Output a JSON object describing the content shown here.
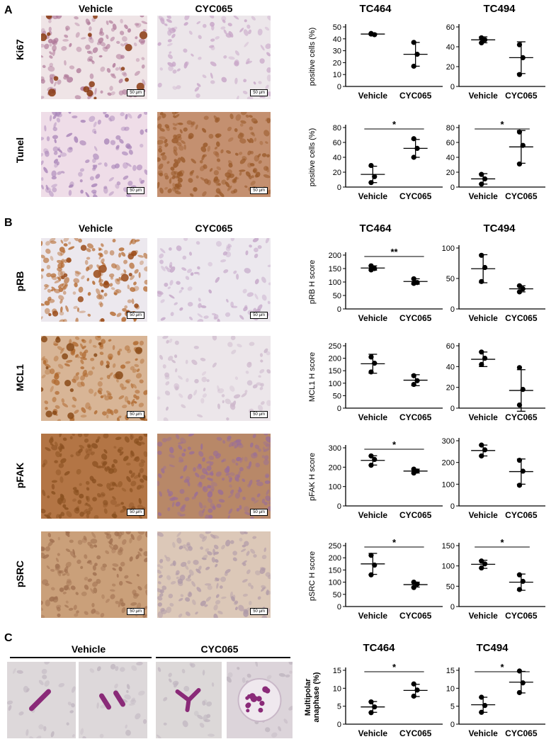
{
  "panels": {
    "A": "A",
    "B": "B",
    "C": "C"
  },
  "headers": {
    "A": {
      "col1": "Vehicle",
      "col2": "CYC065",
      "chart1": "TC464",
      "chart2": "TC494"
    },
    "B": {
      "col1": "Vehicle",
      "col2": "CYC065",
      "chart1": "TC464",
      "chart2": "TC494"
    },
    "C": {
      "col1": "Vehicle",
      "col2": "CYC065",
      "chart1": "TC464",
      "chart2": "TC494"
    }
  },
  "rows": {
    "ki67": "Ki67",
    "tunel": "Tunel",
    "prb": "pRB",
    "mcl1": "MCL1",
    "pfak": "pFAK",
    "psrc": "pSRC"
  },
  "scale_label": "50 µm",
  "colors": {
    "brown": "#9a5a2a",
    "light_brown": "#c89a6a",
    "purple": "#9b7fb0",
    "pink": "#d8b8d8",
    "background": "#ece6ea"
  },
  "chart_data": [
    {
      "id": "a1",
      "type": "scatter",
      "categories": [
        "Vehicle",
        "CYC065"
      ],
      "ylabel": "positive cells (%)",
      "ylim": [
        0,
        50
      ],
      "yticks": [
        0,
        10,
        20,
        30,
        40,
        50
      ],
      "series": [
        {
          "points": [
            [
              44,
              43.5,
              44.5
            ],
            [
              37,
              27,
              17
            ]
          ],
          "mean": [
            44,
            27
          ],
          "sd": [
            0.5,
            10
          ]
        }
      ],
      "sig": ""
    },
    {
      "id": "a2",
      "type": "scatter",
      "categories": [
        "Vehicle",
        "CYC065"
      ],
      "ylabel": "",
      "ylim": [
        0,
        60
      ],
      "yticks": [
        0,
        20,
        40,
        60
      ],
      "series": [
        {
          "points": [
            [
              49,
              47,
              44
            ],
            [
              42,
              29,
              12
            ]
          ],
          "mean": [
            47,
            29
          ],
          "sd": [
            3,
            16
          ]
        }
      ],
      "sig": ""
    },
    {
      "id": "a3",
      "type": "scatter",
      "categories": [
        "Vehicle",
        "CYC065"
      ],
      "ylabel": "positive cells (%)",
      "ylim": [
        0,
        80
      ],
      "yticks": [
        0,
        20,
        40,
        60,
        80
      ],
      "series": [
        {
          "points": [
            [
              29,
              14,
              6
            ],
            [
              65,
              52,
              40
            ]
          ],
          "mean": [
            17,
            52
          ],
          "sd": [
            11,
            12
          ]
        }
      ],
      "sig": "*"
    },
    {
      "id": "a4",
      "type": "scatter",
      "categories": [
        "Vehicle",
        "CYC065"
      ],
      "ylabel": "",
      "ylim": [
        0,
        80
      ],
      "yticks": [
        0,
        20,
        40,
        60,
        80
      ],
      "series": [
        {
          "points": [
            [
              17,
              11,
              4
            ],
            [
              74,
              56,
              31
            ]
          ],
          "mean": [
            11,
            54
          ],
          "sd": [
            7,
            22
          ]
        }
      ],
      "sig": "*"
    },
    {
      "id": "b1",
      "type": "scatter",
      "categories": [
        "Vehicle",
        "CYC065"
      ],
      "ylabel": "pRB H score",
      "ylim": [
        0,
        200
      ],
      "yticks": [
        0,
        50,
        100,
        150,
        200
      ],
      "series": [
        {
          "points": [
            [
              160,
              150,
              145
            ],
            [
              112,
              98,
              95
            ]
          ],
          "mean": [
            152,
            102
          ],
          "sd": [
            8,
            10
          ]
        }
      ],
      "sig": "**"
    },
    {
      "id": "b2",
      "type": "scatter",
      "categories": [
        "Vehicle",
        "CYC065"
      ],
      "ylabel": "",
      "ylim": [
        0,
        100
      ],
      "yticks": [
        0,
        50,
        100
      ],
      "series": [
        {
          "points": [
            [
              88,
              68,
              45
            ],
            [
              38,
              33,
              28
            ]
          ],
          "mean": [
            66,
            33
          ],
          "sd": [
            23,
            5
          ]
        }
      ],
      "sig": ""
    },
    {
      "id": "b3",
      "type": "scatter",
      "categories": [
        "Vehicle",
        "CYC065"
      ],
      "ylabel": "MCL1 H score",
      "ylim": [
        0,
        250
      ],
      "yticks": [
        0,
        50,
        100,
        150,
        200,
        250
      ],
      "series": [
        {
          "points": [
            [
              205,
              180,
              145
            ],
            [
              130,
              110,
              95
            ]
          ],
          "mean": [
            178,
            112
          ],
          "sd": [
            38,
            22
          ]
        }
      ],
      "sig": ""
    },
    {
      "id": "b4",
      "type": "scatter",
      "categories": [
        "Vehicle",
        "CYC065"
      ],
      "ylabel": "",
      "ylim": [
        0,
        60
      ],
      "yticks": [
        0,
        20,
        40,
        60
      ],
      "series": [
        {
          "points": [
            [
              54,
              48,
              42
            ],
            [
              39,
              18,
              3
            ]
          ],
          "mean": [
            47,
            17
          ],
          "sd": [
            7,
            20
          ]
        }
      ],
      "sig": ""
    },
    {
      "id": "b5",
      "type": "scatter",
      "categories": [
        "Vehicle",
        "CYC065"
      ],
      "ylabel": "pFAK H score",
      "ylim": [
        0,
        300
      ],
      "yticks": [
        0,
        100,
        200,
        300
      ],
      "series": [
        {
          "points": [
            [
              258,
              240,
              210
            ],
            [
              190,
              180,
              170
            ]
          ],
          "mean": [
            235,
            180
          ],
          "sd": [
            24,
            10
          ]
        }
      ],
      "sig": "*"
    },
    {
      "id": "b6",
      "type": "scatter",
      "categories": [
        "Vehicle",
        "CYC065"
      ],
      "ylabel": "",
      "ylim": [
        0,
        300
      ],
      "yticks": [
        0,
        100,
        200,
        300
      ],
      "series": [
        {
          "points": [
            [
              280,
              258,
              230
            ],
            [
              210,
              160,
              95
            ]
          ],
          "mean": [
            255,
            158
          ],
          "sd": [
            25,
            58
          ]
        }
      ],
      "sig": ""
    },
    {
      "id": "b7",
      "type": "scatter",
      "categories": [
        "Vehicle",
        "CYC065"
      ],
      "ylabel": "pSRC H score",
      "ylim": [
        0,
        250
      ],
      "yticks": [
        0,
        50,
        100,
        150,
        200,
        250
      ],
      "series": [
        {
          "points": [
            [
              210,
              170,
              130
            ],
            [
              100,
              92,
              78
            ]
          ],
          "mean": [
            175,
            90
          ],
          "sd": [
            43,
            10
          ]
        }
      ],
      "sig": "*"
    },
    {
      "id": "b8",
      "type": "scatter",
      "categories": [
        "Vehicle",
        "CYC065"
      ],
      "ylabel": "",
      "ylim": [
        0,
        150
      ],
      "yticks": [
        0,
        50,
        100,
        150
      ],
      "series": [
        {
          "points": [
            [
              112,
              105,
              95
            ],
            [
              78,
              62,
              42
            ]
          ],
          "mean": [
            104,
            60
          ],
          "sd": [
            10,
            20
          ]
        }
      ],
      "sig": "*"
    },
    {
      "id": "c1",
      "type": "scatter",
      "categories": [
        "Vehicle",
        "CYC065"
      ],
      "ylabel": "Multipolar\nanaphase (%)",
      "ylim": [
        0,
        15
      ],
      "yticks": [
        0,
        5,
        10,
        15
      ],
      "series": [
        {
          "points": [
            [
              6.2,
              4.8,
              3.2
            ],
            [
              11.2,
              9.5,
              7.8
            ]
          ],
          "mean": [
            4.8,
            9.4
          ],
          "sd": [
            1.5,
            1.7
          ]
        }
      ],
      "sig": "*"
    },
    {
      "id": "c2",
      "type": "scatter",
      "categories": [
        "Vehicle",
        "CYC065"
      ],
      "ylabel": "",
      "ylim": [
        0,
        15
      ],
      "yticks": [
        0,
        5,
        10,
        15
      ],
      "series": [
        {
          "points": [
            [
              7.5,
              5.2,
              3.3
            ],
            [
              14.8,
              11.5,
              8.8
            ]
          ],
          "mean": [
            5.4,
            11.7
          ],
          "sd": [
            2.1,
            3
          ]
        }
      ],
      "sig": "*"
    }
  ]
}
